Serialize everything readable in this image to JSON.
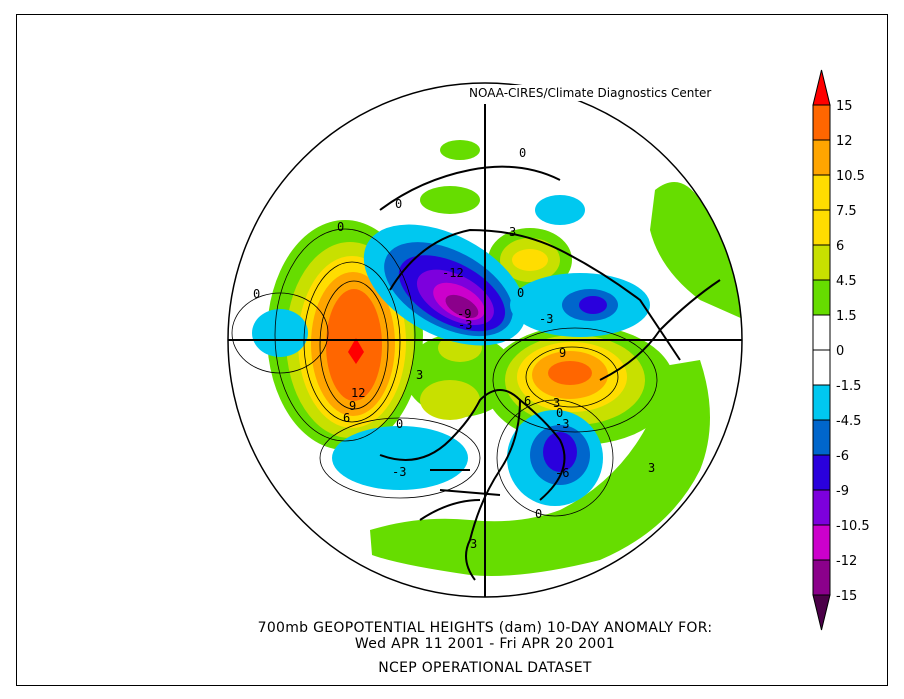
{
  "credit": "NOAA-CIRES/Climate Diagnostics Center",
  "title": {
    "line1": "700mb GEOPOTENTIAL HEIGHTS (dam)   10-DAY ANOMALY FOR:",
    "line2": "Wed APR 11 2001 - Fri APR 20 2001",
    "line3": "NCEP OPERATIONAL DATASET"
  },
  "colorbar": {
    "labels": [
      "15",
      "12",
      "10.5",
      "7.5",
      "6",
      "4.5",
      "1.5",
      "0",
      "-1.5",
      "-4.5",
      "-6",
      "-9",
      "-10.5",
      "-12",
      "-15"
    ],
    "top_arrow_color": "#ff0000",
    "bottom_arrow_color": "#4b0048",
    "colors": [
      "#ff6600",
      "#ffa500",
      "#ffdd00",
      "#ffdd00",
      "#c8e000",
      "#66dd00",
      "#ffffff",
      "#ffffff",
      "#00c8f0",
      "#0066cc",
      "#2a00dd",
      "#7d00dd",
      "#cc00cc",
      "#8b008b"
    ]
  },
  "contour_labels": [
    "0",
    "0",
    "0",
    "0",
    "3",
    "-12",
    "-9",
    "-3",
    "-3",
    "0",
    "12",
    "9",
    "6",
    "3",
    "9",
    "6",
    "3",
    "0",
    "-3",
    "-6",
    "3",
    "0",
    "-3",
    "3",
    "0"
  ]
}
